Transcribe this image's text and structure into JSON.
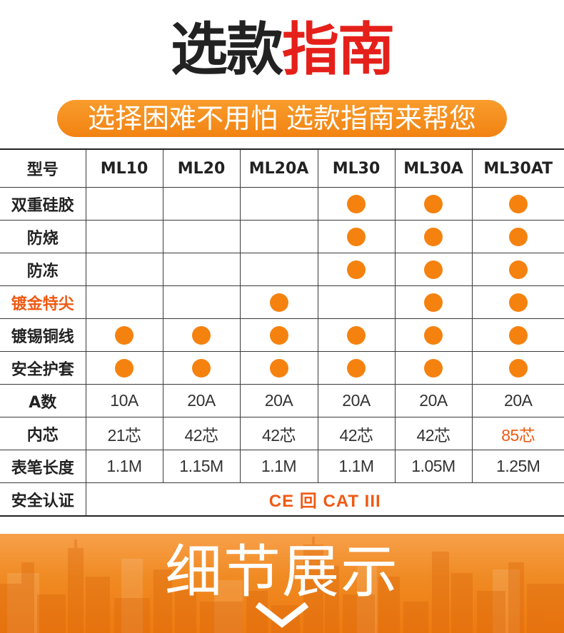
{
  "colors": {
    "orange": "#f5820f",
    "red": "#e5201a",
    "highlight": "#ef5a14",
    "text": "#222222"
  },
  "header": {
    "title_dark": "选款",
    "title_red": "指南",
    "subtitle": "选择困难不用怕 选款指南来帮您"
  },
  "table": {
    "corner": "型号",
    "models": [
      "ML10",
      "ML20",
      "ML20A",
      "ML30",
      "ML30A",
      "ML30AT"
    ],
    "feature_rows": [
      {
        "label": "双重硅胶",
        "highlight": false,
        "has": [
          false,
          false,
          false,
          true,
          true,
          true
        ]
      },
      {
        "label": "防烧",
        "highlight": false,
        "has": [
          false,
          false,
          false,
          true,
          true,
          true
        ]
      },
      {
        "label": "防冻",
        "highlight": false,
        "has": [
          false,
          false,
          false,
          true,
          true,
          true
        ]
      },
      {
        "label": "镀金特尖",
        "highlight": true,
        "has": [
          false,
          false,
          true,
          false,
          true,
          true
        ]
      },
      {
        "label": "镀锡铜线",
        "highlight": false,
        "has": [
          true,
          true,
          true,
          true,
          true,
          true
        ]
      },
      {
        "label": "安全护套",
        "highlight": false,
        "has": [
          true,
          true,
          true,
          true,
          true,
          true
        ]
      }
    ],
    "value_rows": [
      {
        "label": "A数",
        "values": [
          "10A",
          "20A",
          "20A",
          "20A",
          "20A",
          "20A"
        ],
        "highlight": [
          false,
          false,
          false,
          false,
          false,
          false
        ]
      },
      {
        "label": "内芯",
        "values": [
          "21芯",
          "42芯",
          "42芯",
          "42芯",
          "42芯",
          "85芯"
        ],
        "highlight": [
          false,
          false,
          false,
          false,
          false,
          true
        ]
      },
      {
        "label": "表笔长度",
        "values": [
          "1.1M",
          "1.15M",
          "1.1M",
          "1.1M",
          "1.05M",
          "1.25M"
        ],
        "highlight": [
          false,
          false,
          false,
          false,
          false,
          false
        ]
      }
    ],
    "certification": {
      "label": "安全认证",
      "value": "CE 回 CAT III"
    }
  },
  "footer": {
    "title": "细节展示",
    "icon": "chevron-down-icon"
  }
}
